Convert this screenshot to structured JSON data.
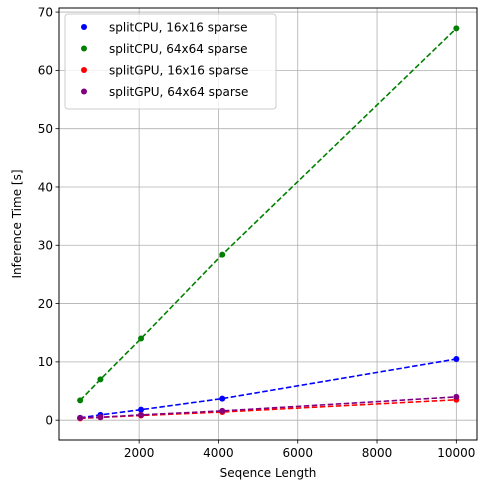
{
  "chart_data": {
    "type": "scatter",
    "xlabel": "Seqence Length",
    "ylabel": "Inference Time [s]",
    "xlim": [
      -21,
      10521
    ],
    "ylim": [
      -3.4,
      70.7
    ],
    "grid": true,
    "legend_position": "top-left",
    "x_ticks": [
      2000,
      4000,
      6000,
      8000,
      10000
    ],
    "y_ticks": [
      0,
      10,
      20,
      30,
      40,
      50,
      60,
      70
    ],
    "x": [
      512,
      1024,
      2048,
      4096,
      10000
    ],
    "series": [
      {
        "name": "splitCPU, 16x16 sparse",
        "color": "#0000ff",
        "values": [
          0.4,
          0.9,
          1.8,
          3.7,
          10.5
        ]
      },
      {
        "name": "splitCPU, 64x64 sparse",
        "color": "#008000",
        "values": [
          3.4,
          7.0,
          14.0,
          28.4,
          67.2
        ]
      },
      {
        "name": "splitGPU, 16x16 sparse",
        "color": "#ff0000",
        "values": [
          0.3,
          0.5,
          0.8,
          1.4,
          3.5
        ]
      },
      {
        "name": "splitGPU, 64x64 sparse",
        "color": "#800080",
        "values": [
          0.4,
          0.5,
          0.9,
          1.6,
          4.0
        ]
      }
    ]
  }
}
